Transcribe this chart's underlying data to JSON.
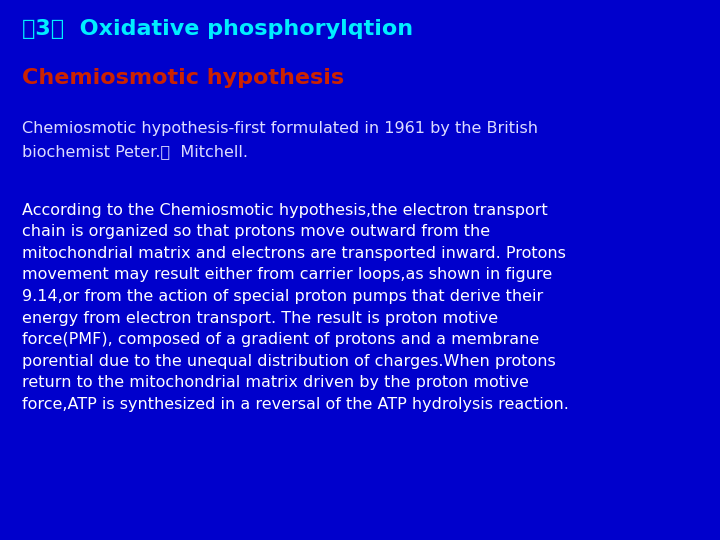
{
  "bg_color": "#0000cc",
  "title_text": "（3）  Oxidative phosphorylqtion",
  "title_color": "#00eeff",
  "subtitle_text": "Chemiosmotic hypothesis",
  "subtitle_color": "#cc2200",
  "para1_line1": "Chemiosmotic hypothesis-first formulated in 1961 by the British",
  "para1_line2": "biochemist Peter.　  Mitchell.",
  "para1_color": "#ddddff",
  "para2_lines": [
    "According to the Chemiosmotic hypothesis,the electron transport",
    "chain is organized so that protons move outward from the",
    "mitochondrial matrix and electrons are transported inward. Protons",
    "movement may result either from carrier loops,as shown in figure",
    "9.14,or from the action of special proton pumps that derive their",
    "energy from electron transport. The result is proton motive",
    "force(PMF), composed of a gradient of protons and a membrane",
    "porential due to the unequal distribution of charges.When protons",
    "return to the mitochondrial matrix driven by the proton motive",
    "force,ATP is synthesized in a reversal of the ATP hydrolysis reaction."
  ],
  "para2_color": "#ffffff",
  "title_fontsize": 16,
  "subtitle_fontsize": 16,
  "para1_fontsize": 11.5,
  "para2_fontsize": 11.5,
  "fig_width": 7.2,
  "fig_height": 5.4,
  "dpi": 100
}
